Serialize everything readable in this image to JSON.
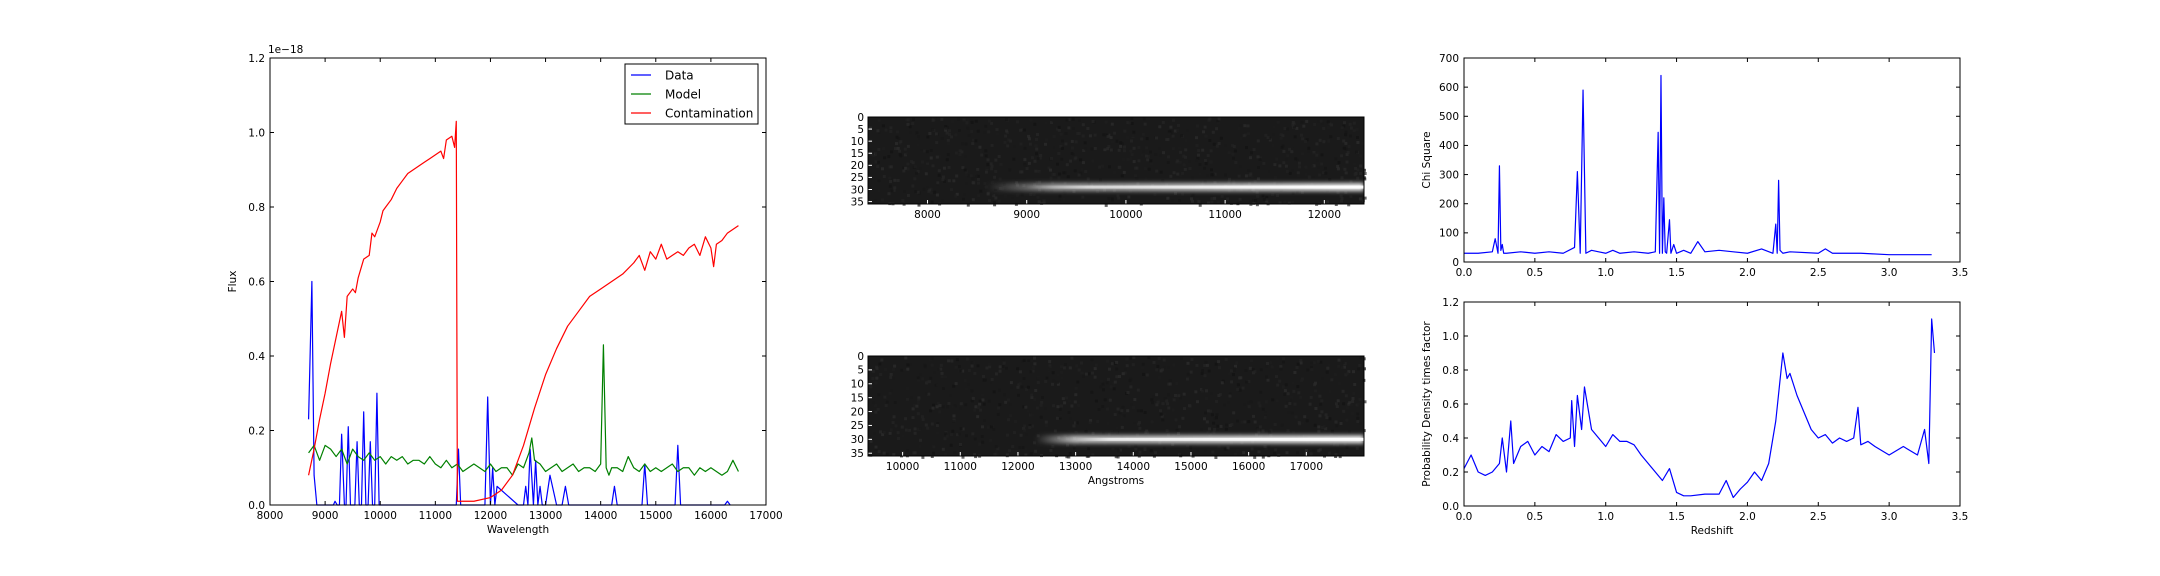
{
  "chart_data": [
    {
      "type": "line",
      "xlabel": "Wavelength",
      "ylabel": "Flux",
      "offset_text": "1e−18",
      "xlim": [
        8000,
        17000
      ],
      "ylim": [
        0.0,
        1.2
      ],
      "xticks": [
        8000,
        9000,
        10000,
        11000,
        12000,
        13000,
        14000,
        15000,
        16000,
        17000
      ],
      "yticks": [
        0.0,
        0.2,
        0.4,
        0.6,
        0.8,
        1.0,
        1.2
      ],
      "legend_placement": "top-right",
      "series": [
        {
          "name": "Data",
          "color": "#0000ff",
          "x": [
            8700,
            8760,
            8800,
            8850,
            9000,
            9150,
            9180,
            9220,
            9260,
            9300,
            9350,
            9380,
            9420,
            9460,
            9500,
            9540,
            9580,
            9620,
            9660,
            9700,
            9740,
            9780,
            9820,
            9860,
            9900,
            9940,
            9980,
            10020,
            11380,
            11420,
            11460,
            11900,
            11950,
            12000,
            12040,
            12080,
            12120,
            12500,
            12600,
            12640,
            12680,
            12720,
            12780,
            12820,
            12860,
            12900,
            12940,
            13000,
            13080,
            13200,
            13300,
            13360,
            13420,
            13500,
            14200,
            14250,
            14300,
            14750,
            14800,
            14850,
            15350,
            15400,
            15450,
            16250,
            16300,
            16350
          ],
          "y": [
            0.23,
            0.6,
            0.08,
            0.0,
            0.0,
            0.0,
            0.01,
            0.0,
            0.0,
            0.19,
            0.0,
            0.0,
            0.21,
            0.0,
            0.0,
            0.0,
            0.17,
            0.0,
            0.0,
            0.25,
            0.0,
            0.0,
            0.17,
            0.0,
            0.0,
            0.3,
            0.0,
            0.0,
            0.0,
            0.15,
            0.0,
            0.0,
            0.29,
            0.0,
            0.1,
            0.0,
            0.05,
            0.0,
            0.0,
            0.05,
            0.0,
            0.15,
            0.0,
            0.12,
            0.0,
            0.05,
            0.0,
            0.0,
            0.08,
            0.0,
            0.0,
            0.05,
            0.0,
            0.0,
            0.0,
            0.05,
            0.0,
            0.0,
            0.11,
            0.0,
            0.0,
            0.16,
            0.0,
            0.0,
            0.01,
            0.0
          ]
        },
        {
          "name": "Model",
          "color": "#008000",
          "x": [
            8700,
            8800,
            8900,
            9000,
            9100,
            9200,
            9300,
            9400,
            9500,
            9600,
            9700,
            9800,
            9900,
            10000,
            10100,
            10200,
            10300,
            10400,
            10500,
            10600,
            10700,
            10800,
            10900,
            11000,
            11100,
            11200,
            11300,
            11400,
            11500,
            11600,
            11700,
            11800,
            11900,
            12000,
            12100,
            12200,
            12300,
            12400,
            12500,
            12600,
            12700,
            12750,
            12800,
            12900,
            13000,
            13100,
            13200,
            13300,
            13400,
            13500,
            13600,
            13700,
            13800,
            13900,
            14000,
            14050,
            14100,
            14150,
            14200,
            14300,
            14400,
            14500,
            14600,
            14700,
            14800,
            14900,
            15000,
            15100,
            15200,
            15300,
            15400,
            15500,
            15600,
            15700,
            15800,
            15900,
            16000,
            16100,
            16200,
            16300,
            16400,
            16500
          ],
          "y": [
            0.14,
            0.16,
            0.12,
            0.16,
            0.15,
            0.13,
            0.15,
            0.11,
            0.15,
            0.13,
            0.12,
            0.14,
            0.12,
            0.13,
            0.11,
            0.13,
            0.12,
            0.13,
            0.11,
            0.12,
            0.12,
            0.11,
            0.13,
            0.11,
            0.1,
            0.12,
            0.1,
            0.11,
            0.09,
            0.1,
            0.11,
            0.1,
            0.09,
            0.11,
            0.09,
            0.1,
            0.1,
            0.08,
            0.11,
            0.1,
            0.14,
            0.18,
            0.12,
            0.11,
            0.09,
            0.1,
            0.11,
            0.09,
            0.1,
            0.11,
            0.09,
            0.1,
            0.1,
            0.09,
            0.11,
            0.43,
            0.1,
            0.08,
            0.1,
            0.1,
            0.09,
            0.13,
            0.1,
            0.09,
            0.11,
            0.09,
            0.1,
            0.09,
            0.1,
            0.11,
            0.09,
            0.1,
            0.1,
            0.08,
            0.1,
            0.09,
            0.1,
            0.09,
            0.08,
            0.09,
            0.12,
            0.09
          ]
        },
        {
          "name": "Contamination",
          "color": "#ff0000",
          "x": [
            8700,
            8800,
            8900,
            9000,
            9100,
            9200,
            9300,
            9350,
            9400,
            9500,
            9550,
            9600,
            9700,
            9800,
            9850,
            9900,
            10000,
            10050,
            10100,
            10200,
            10300,
            10400,
            10500,
            10600,
            10700,
            10800,
            10900,
            11000,
            11100,
            11150,
            11200,
            11300,
            11350,
            11380,
            11390,
            11400,
            11700,
            12000,
            12200,
            12400,
            12600,
            12800,
            13000,
            13200,
            13400,
            13600,
            13800,
            14000,
            14200,
            14400,
            14600,
            14700,
            14800,
            14900,
            15000,
            15100,
            15200,
            15300,
            15400,
            15500,
            15600,
            15700,
            15800,
            15900,
            16000,
            16050,
            16100,
            16200,
            16300,
            16400,
            16500
          ],
          "y": [
            0.08,
            0.15,
            0.23,
            0.3,
            0.38,
            0.45,
            0.52,
            0.45,
            0.56,
            0.58,
            0.57,
            0.61,
            0.66,
            0.67,
            0.73,
            0.72,
            0.76,
            0.79,
            0.8,
            0.82,
            0.85,
            0.87,
            0.89,
            0.9,
            0.91,
            0.92,
            0.93,
            0.94,
            0.95,
            0.93,
            0.98,
            0.99,
            0.96,
            1.03,
            0.5,
            0.01,
            0.01,
            0.02,
            0.04,
            0.08,
            0.16,
            0.26,
            0.35,
            0.42,
            0.48,
            0.52,
            0.56,
            0.58,
            0.6,
            0.62,
            0.65,
            0.67,
            0.63,
            0.68,
            0.66,
            0.7,
            0.66,
            0.67,
            0.68,
            0.67,
            0.69,
            0.7,
            0.67,
            0.72,
            0.69,
            0.64,
            0.7,
            0.71,
            0.73,
            0.74,
            0.75
          ]
        }
      ]
    },
    {
      "type": "heatmap",
      "colormap": "gray",
      "xlim": [
        7400,
        12400
      ],
      "xticks": [
        8000,
        9000,
        10000,
        11000,
        12000
      ],
      "yticks": [
        0,
        5,
        10,
        15,
        20,
        25,
        30,
        35
      ],
      "rows": 37,
      "trace_row": 29,
      "trace_start": 9000,
      "xlabel": ""
    },
    {
      "type": "heatmap",
      "colormap": "gray",
      "xlim": [
        9400,
        18000
      ],
      "xticks": [
        10000,
        11000,
        12000,
        13000,
        14000,
        15000,
        16000,
        17000
      ],
      "yticks": [
        0,
        5,
        10,
        15,
        20,
        25,
        30,
        35
      ],
      "rows": 37,
      "trace_row": 30,
      "trace_start": 13000,
      "xlabel": "Angstroms"
    },
    {
      "type": "line",
      "xlabel": "",
      "ylabel": "Chi Square",
      "xlim": [
        0.0,
        3.5
      ],
      "ylim": [
        0,
        700
      ],
      "xticks": [
        0.0,
        0.5,
        1.0,
        1.5,
        2.0,
        2.5,
        3.0,
        3.5
      ],
      "yticks": [
        0,
        100,
        200,
        300,
        400,
        500,
        600,
        700
      ],
      "series": [
        {
          "color": "#0000ff",
          "x": [
            0.0,
            0.1,
            0.2,
            0.22,
            0.24,
            0.25,
            0.26,
            0.27,
            0.28,
            0.3,
            0.4,
            0.5,
            0.6,
            0.7,
            0.78,
            0.8,
            0.82,
            0.84,
            0.86,
            0.9,
            0.95,
            1.0,
            1.05,
            1.1,
            1.2,
            1.3,
            1.35,
            1.37,
            1.38,
            1.39,
            1.4,
            1.41,
            1.42,
            1.43,
            1.45,
            1.46,
            1.48,
            1.5,
            1.55,
            1.6,
            1.65,
            1.7,
            1.8,
            1.9,
            2.0,
            2.1,
            2.18,
            2.2,
            2.21,
            2.22,
            2.23,
            2.25,
            2.3,
            2.5,
            2.55,
            2.6,
            2.8,
            3.0,
            3.3
          ],
          "y": [
            30,
            30,
            35,
            80,
            30,
            330,
            40,
            60,
            30,
            30,
            35,
            30,
            35,
            30,
            50,
            310,
            30,
            590,
            30,
            40,
            35,
            30,
            40,
            30,
            35,
            30,
            35,
            445,
            30,
            640,
            30,
            220,
            35,
            30,
            145,
            30,
            60,
            30,
            40,
            30,
            70,
            35,
            40,
            35,
            30,
            45,
            30,
            130,
            30,
            280,
            40,
            30,
            35,
            30,
            45,
            30,
            30,
            25,
            25
          ]
        }
      ]
    },
    {
      "type": "line",
      "xlabel": "Redshift",
      "ylabel": "Probability Density times factor",
      "xlim": [
        0.0,
        3.5
      ],
      "ylim": [
        0.0,
        1.2
      ],
      "xticks": [
        0.0,
        0.5,
        1.0,
        1.5,
        2.0,
        2.5,
        3.0,
        3.5
      ],
      "yticks": [
        0.0,
        0.2,
        0.4,
        0.6,
        0.8,
        1.0,
        1.2
      ],
      "series": [
        {
          "color": "#0000ff",
          "x": [
            0.0,
            0.05,
            0.1,
            0.15,
            0.2,
            0.25,
            0.27,
            0.3,
            0.33,
            0.35,
            0.4,
            0.45,
            0.5,
            0.55,
            0.6,
            0.65,
            0.7,
            0.75,
            0.76,
            0.78,
            0.8,
            0.83,
            0.85,
            0.9,
            0.95,
            1.0,
            1.05,
            1.1,
            1.15,
            1.2,
            1.25,
            1.3,
            1.35,
            1.4,
            1.45,
            1.5,
            1.55,
            1.6,
            1.7,
            1.8,
            1.85,
            1.9,
            1.95,
            2.0,
            2.05,
            2.1,
            2.15,
            2.2,
            2.25,
            2.28,
            2.3,
            2.35,
            2.4,
            2.45,
            2.5,
            2.55,
            2.6,
            2.65,
            2.7,
            2.75,
            2.78,
            2.8,
            2.85,
            2.9,
            3.0,
            3.1,
            3.2,
            3.25,
            3.28,
            3.3,
            3.32
          ],
          "y": [
            0.22,
            0.3,
            0.2,
            0.18,
            0.2,
            0.25,
            0.4,
            0.2,
            0.5,
            0.25,
            0.35,
            0.38,
            0.3,
            0.35,
            0.32,
            0.42,
            0.38,
            0.4,
            0.62,
            0.35,
            0.65,
            0.45,
            0.7,
            0.45,
            0.4,
            0.35,
            0.42,
            0.38,
            0.38,
            0.36,
            0.3,
            0.25,
            0.2,
            0.15,
            0.22,
            0.08,
            0.06,
            0.06,
            0.07,
            0.07,
            0.15,
            0.05,
            0.1,
            0.14,
            0.2,
            0.15,
            0.25,
            0.5,
            0.9,
            0.75,
            0.78,
            0.65,
            0.55,
            0.45,
            0.4,
            0.42,
            0.37,
            0.4,
            0.38,
            0.4,
            0.58,
            0.36,
            0.38,
            0.35,
            0.3,
            0.35,
            0.3,
            0.45,
            0.25,
            1.1,
            0.9
          ]
        }
      ]
    }
  ]
}
